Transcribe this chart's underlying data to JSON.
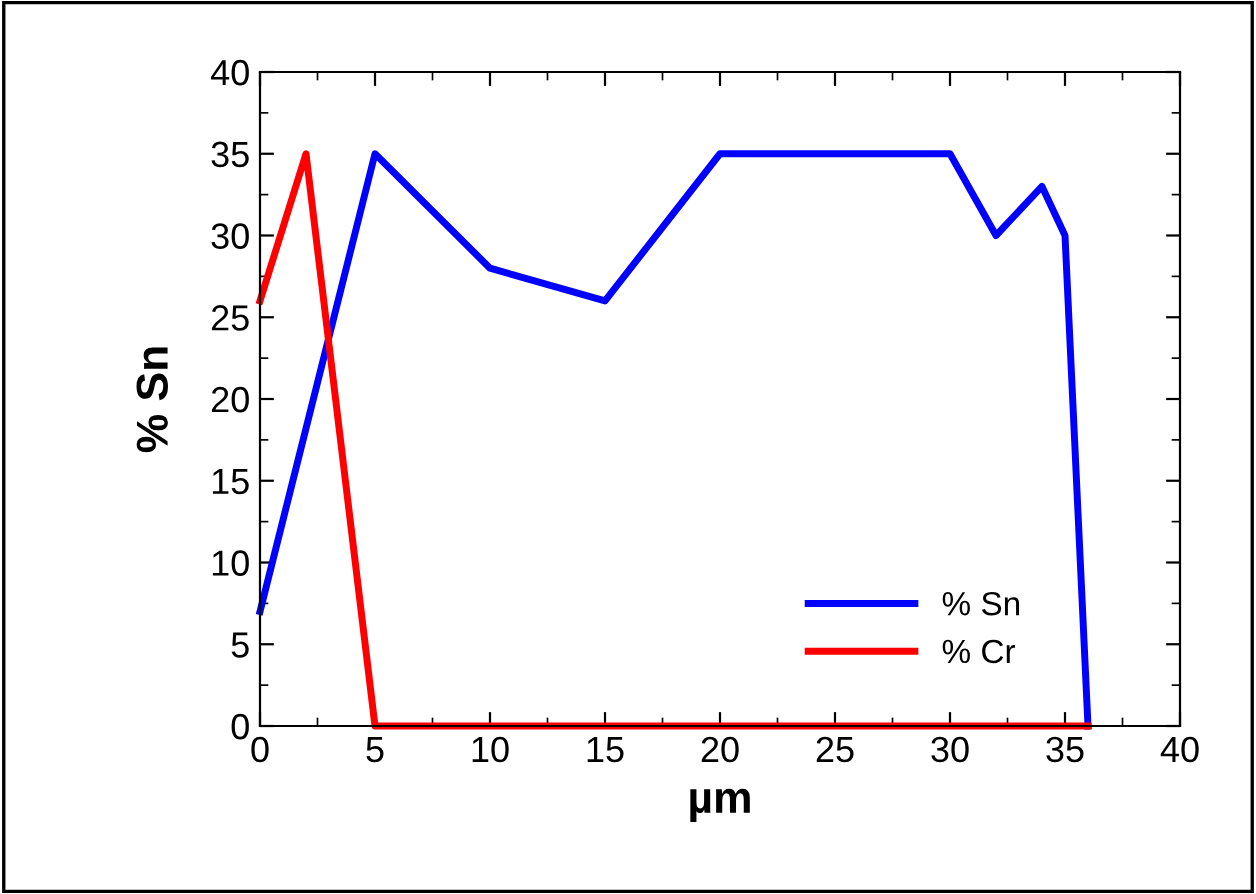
{
  "chart_data": {
    "type": "line",
    "xlabel": "µm",
    "ylabel": "% Sn",
    "xlim": [
      0,
      40
    ],
    "xticks": [
      0,
      5,
      10,
      15,
      20,
      25,
      30,
      35,
      40
    ],
    "ylim": [
      0,
      40
    ],
    "yticks": [
      0,
      5,
      10,
      15,
      20,
      25,
      30,
      35,
      40
    ],
    "grid": false,
    "legend": "bottom right",
    "marker": "none",
    "line_style": "solid",
    "series": [
      {
        "name": "% Sn",
        "color": "#0000ff",
        "x": [
          0,
          5,
          10,
          15,
          20,
          30,
          32,
          34,
          35,
          36
        ],
        "values": [
          7,
          35,
          28,
          26,
          35,
          35,
          30,
          33,
          30,
          0
        ]
      },
      {
        "name": "% Cr",
        "color": "#ff0000",
        "x": [
          0,
          2,
          5,
          36
        ],
        "values": [
          26,
          35,
          0,
          0
        ]
      }
    ]
  }
}
